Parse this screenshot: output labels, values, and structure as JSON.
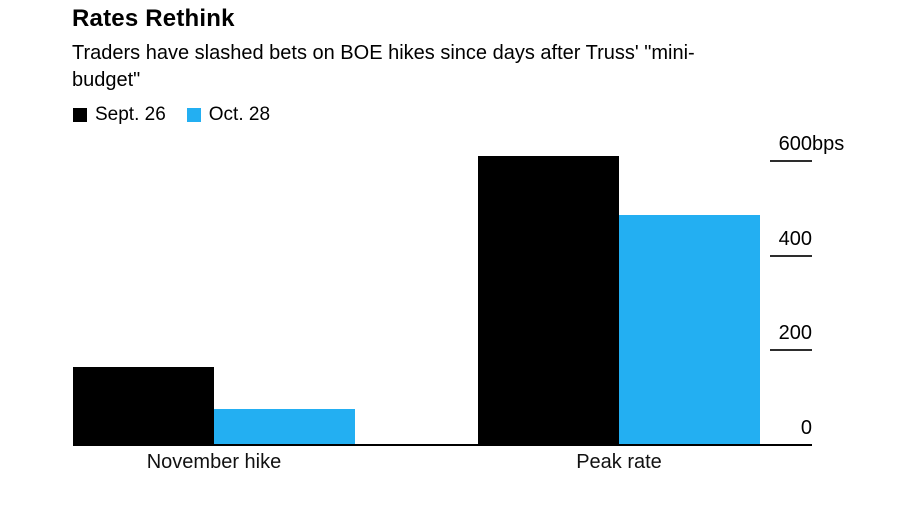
{
  "header": {
    "title": "Rates Rethink",
    "subtitle_lines": [
      "Traders have slashed bets on BOE hikes since days after Truss' \"mini-",
      "budget\""
    ]
  },
  "chart_data": {
    "type": "bar",
    "categories": [
      "November hike",
      "Peak rate"
    ],
    "series": [
      {
        "name": "Sept. 26",
        "color": "#000000",
        "values": [
          165,
          610
        ]
      },
      {
        "name": "Oct. 28",
        "color": "#23aff2",
        "values": [
          75,
          485
        ]
      }
    ],
    "unit": "bps",
    "yticks": [
      0,
      200,
      400,
      600
    ],
    "ylim": [
      0,
      620
    ],
    "xlabel": "",
    "ylabel": "",
    "grid": false,
    "axis_side": "right",
    "legend_position": "top-left",
    "background": "#ffffff"
  }
}
